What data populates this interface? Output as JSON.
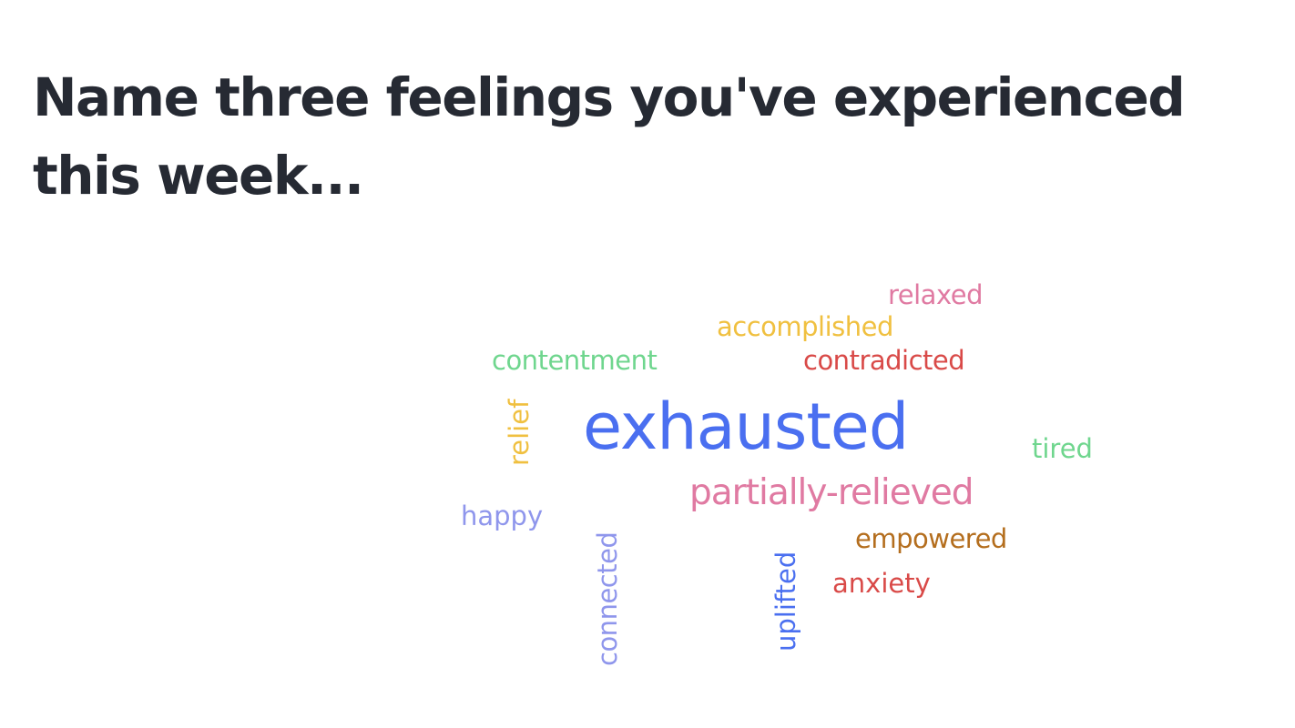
{
  "question": {
    "title": "Name three feelings you've experienced this week..."
  },
  "colors": {
    "title": "#262a33",
    "blue": "#4a6ff0",
    "pink": "#e07aa2",
    "yellow": "#f0c040",
    "green": "#6fd68e",
    "red": "#d94a48",
    "brown": "#b46e1e",
    "lavender": "#8f96ec"
  },
  "word_cloud": {
    "words": [
      {
        "text": "exhausted",
        "color": "#4a6ff0",
        "weight": 1.0,
        "orientation": "horizontal"
      },
      {
        "text": "partially-relieved",
        "color": "#e07aa2",
        "weight": 0.45,
        "orientation": "horizontal"
      },
      {
        "text": "relaxed",
        "color": "#e07aa2",
        "weight": 0.3,
        "orientation": "horizontal"
      },
      {
        "text": "accomplished",
        "color": "#f0c040",
        "weight": 0.3,
        "orientation": "horizontal"
      },
      {
        "text": "contentment",
        "color": "#6fd68e",
        "weight": 0.3,
        "orientation": "horizontal"
      },
      {
        "text": "contradicted",
        "color": "#d94a48",
        "weight": 0.3,
        "orientation": "horizontal"
      },
      {
        "text": "relief",
        "color": "#f0c040",
        "weight": 0.3,
        "orientation": "vertical"
      },
      {
        "text": "tired",
        "color": "#6fd68e",
        "weight": 0.3,
        "orientation": "horizontal"
      },
      {
        "text": "happy",
        "color": "#8f96ec",
        "weight": 0.3,
        "orientation": "horizontal"
      },
      {
        "text": "connected",
        "color": "#8f96ec",
        "weight": 0.3,
        "orientation": "vertical"
      },
      {
        "text": "uplifted",
        "color": "#4a6ff0",
        "weight": 0.3,
        "orientation": "vertical"
      },
      {
        "text": "empowered",
        "color": "#b46e1e",
        "weight": 0.3,
        "orientation": "horizontal"
      },
      {
        "text": "anxiety",
        "color": "#d94a48",
        "weight": 0.3,
        "orientation": "horizontal"
      }
    ]
  }
}
